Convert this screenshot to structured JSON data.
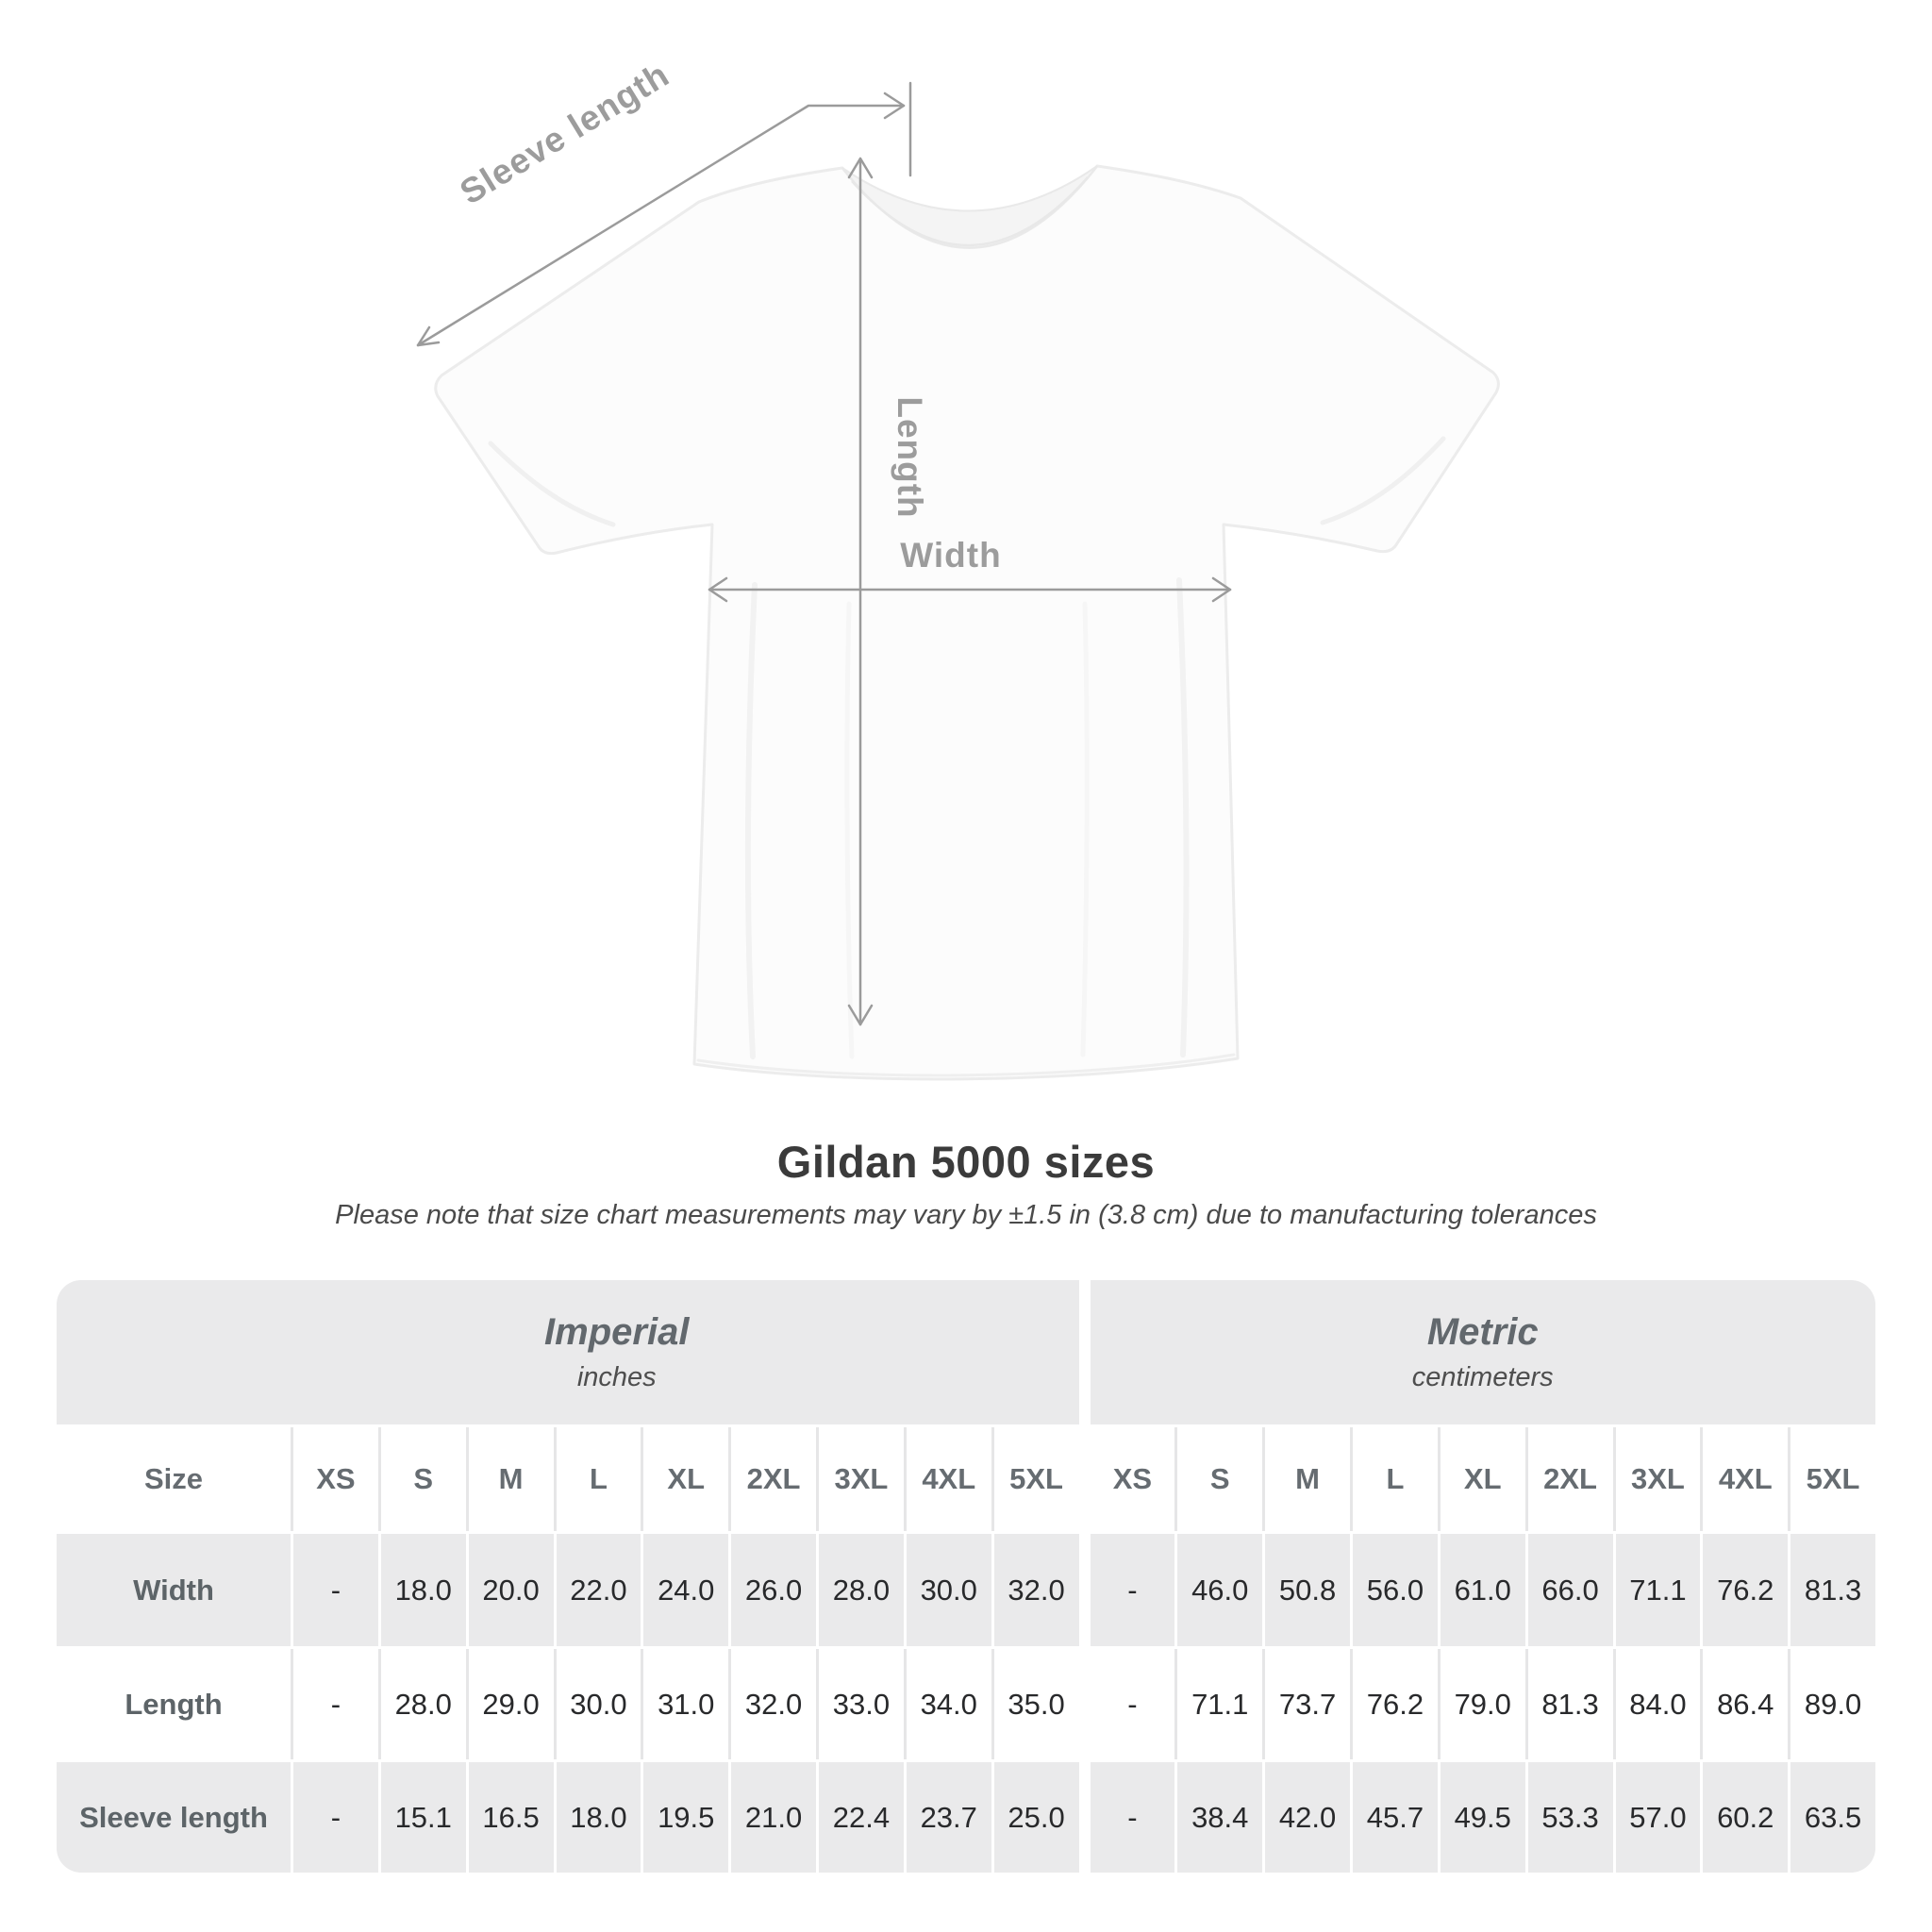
{
  "diagram": {
    "sleeve_label": "Sleeve length",
    "length_label": "Length",
    "width_label": "Width",
    "line_color": "#9b9b9b",
    "label_color": "#9c9c9c"
  },
  "heading": {
    "title": "Gildan 5000 sizes",
    "subtitle": "Please note that size chart measurements may vary by ±1.5 in (3.8 cm) due to manufacturing tolerances"
  },
  "chart_data": {
    "type": "table",
    "title": "Gildan 5000 sizes",
    "note": "Please note that size chart measurements may vary by ±1.5 in (3.8 cm) due to manufacturing tolerances",
    "table_bg": "#eaeaeb",
    "size_header": "Size",
    "sizes": [
      "XS",
      "S",
      "M",
      "L",
      "XL",
      "2XL",
      "3XL",
      "4XL",
      "5XL"
    ],
    "groups": [
      {
        "label": "Imperial",
        "unit": "inches"
      },
      {
        "label": "Metric",
        "unit": "centimeters"
      }
    ],
    "rows": [
      {
        "label": "Width",
        "imperial": [
          "-",
          "18.0",
          "20.0",
          "22.0",
          "24.0",
          "26.0",
          "28.0",
          "30.0",
          "32.0"
        ],
        "metric": [
          "-",
          "46.0",
          "50.8",
          "56.0",
          "61.0",
          "66.0",
          "71.1",
          "76.2",
          "81.3"
        ]
      },
      {
        "label": "Length",
        "imperial": [
          "-",
          "28.0",
          "29.0",
          "30.0",
          "31.0",
          "32.0",
          "33.0",
          "34.0",
          "35.0"
        ],
        "metric": [
          "-",
          "71.1",
          "73.7",
          "76.2",
          "79.0",
          "81.3",
          "84.0",
          "86.4",
          "89.0"
        ]
      },
      {
        "label": "Sleeve length",
        "imperial": [
          "-",
          "15.1",
          "16.5",
          "18.0",
          "19.5",
          "21.0",
          "22.4",
          "23.7",
          "25.0"
        ],
        "metric": [
          "-",
          "38.4",
          "42.0",
          "45.7",
          "49.5",
          "53.3",
          "57.0",
          "60.2",
          "63.5"
        ]
      }
    ]
  }
}
